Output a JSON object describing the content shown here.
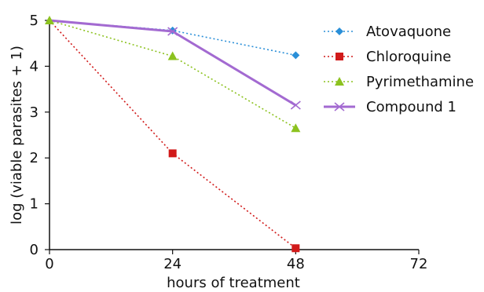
{
  "chart_data": {
    "type": "line",
    "title": "",
    "xlabel": "hours of treatment",
    "ylabel": "log (viable parasites + 1)",
    "xlim": [
      0,
      72
    ],
    "ylim": [
      0,
      5
    ],
    "x_ticks": [
      0,
      24,
      48,
      72
    ],
    "y_ticks": [
      0,
      1,
      2,
      3,
      4,
      5
    ],
    "grid": false,
    "legend_position": "top-right",
    "series": [
      {
        "name": "Atovaquone",
        "x": [
          0,
          24,
          48
        ],
        "values": [
          5,
          4.78,
          4.24
        ],
        "color": "#2a8fd8",
        "line": "dotted",
        "marker": "diamond"
      },
      {
        "name": "Chloroquine",
        "x": [
          0,
          24,
          48
        ],
        "values": [
          5,
          2.1,
          0.03
        ],
        "color": "#d11a1a",
        "line": "dotted",
        "marker": "square"
      },
      {
        "name": "Pyrimethamine",
        "x": [
          0,
          24,
          48
        ],
        "values": [
          5,
          4.22,
          2.65
        ],
        "color": "#8cc21f",
        "line": "dotted",
        "marker": "triangle"
      },
      {
        "name": "Compound 1",
        "x": [
          0,
          24,
          48
        ],
        "values": [
          5,
          4.76,
          3.15
        ],
        "color": "#a36ad1",
        "line": "solid",
        "marker": "x"
      }
    ]
  }
}
